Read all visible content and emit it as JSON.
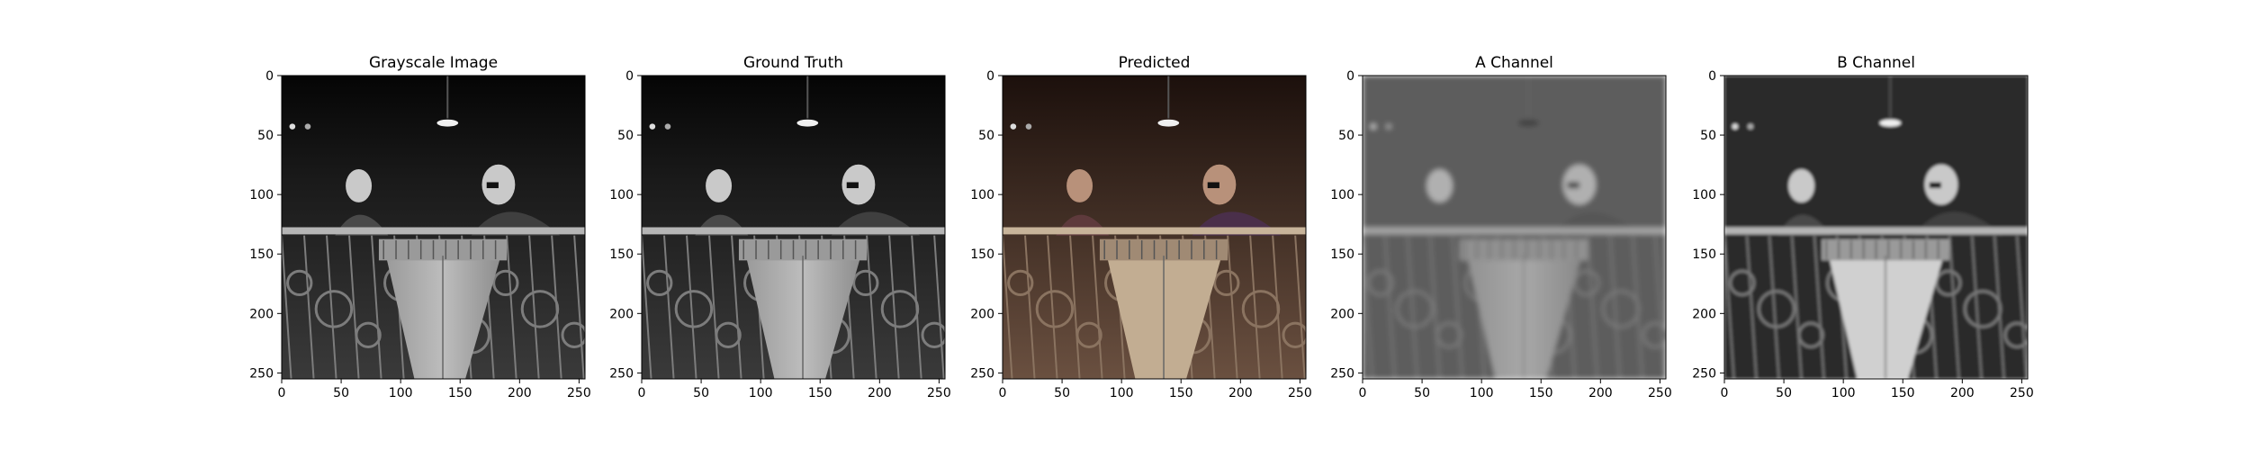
{
  "figure": {
    "panels": [
      {
        "title": "Grayscale Image",
        "xticks": [
          "0",
          "50",
          "100",
          "150",
          "200",
          "250"
        ],
        "yticks": [
          "0",
          "50",
          "100",
          "150",
          "200",
          "250"
        ],
        "tone": "gray"
      },
      {
        "title": "Ground Truth",
        "xticks": [
          "0",
          "50",
          "100",
          "150",
          "200",
          "250"
        ],
        "yticks": [
          "0",
          "50",
          "100",
          "150",
          "200",
          "250"
        ],
        "tone": "gray"
      },
      {
        "title": "Predicted",
        "xticks": [
          "0",
          "50",
          "100",
          "150",
          "200",
          "250"
        ],
        "yticks": [
          "0",
          "50",
          "100",
          "150",
          "200",
          "250"
        ],
        "tone": "color"
      },
      {
        "title": "A Channel",
        "xticks": [
          "0",
          "50",
          "100",
          "150",
          "200",
          "250"
        ],
        "yticks": [
          "0",
          "50",
          "100",
          "150",
          "200",
          "250"
        ],
        "tone": "blur"
      },
      {
        "title": "B Channel",
        "xticks": [
          "0",
          "50",
          "100",
          "150",
          "200",
          "250"
        ],
        "yticks": [
          "0",
          "50",
          "100",
          "150",
          "200",
          "250"
        ],
        "tone": "light-blur"
      }
    ],
    "axis_range": [
      0,
      255
    ],
    "tick_values": [
      0,
      50,
      100,
      150,
      200,
      250
    ]
  }
}
